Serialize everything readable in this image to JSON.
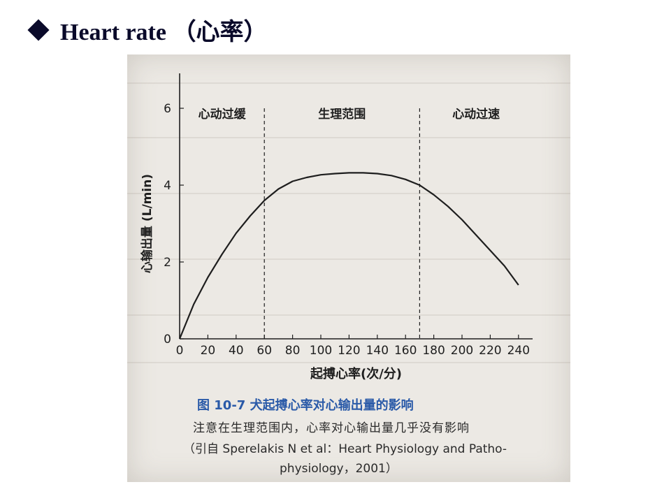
{
  "slide": {
    "title": "Heart rate （心率）"
  },
  "figure": {
    "caption_title": "图 10-7  犬起搏心率对心输出量的影响",
    "caption_note": "注意在生理范围内，心率对心输出量几乎没有影响",
    "caption_source_line1": "（引自 Sperelakis N et al：Heart Physiology and Patho-",
    "caption_source_line2": "physiology，2001）"
  },
  "chart_data": {
    "type": "line",
    "xlabel": "起搏心率(次/分)",
    "ylabel": "心输出量 (L/min)",
    "xlim": [
      0,
      250
    ],
    "ylim": [
      0,
      6
    ],
    "xticks": [
      0,
      20,
      40,
      60,
      80,
      100,
      120,
      140,
      160,
      180,
      200,
      220,
      240
    ],
    "yticks": [
      0,
      2,
      4,
      6
    ],
    "region_dividers_x": [
      60,
      170
    ],
    "region_labels": [
      "心动过缓",
      "生理范围",
      "心动过速"
    ],
    "grid": false,
    "series": [
      {
        "x": [
          0,
          10,
          20,
          30,
          40,
          50,
          60,
          70,
          80,
          90,
          100,
          110,
          120,
          130,
          140,
          150,
          160,
          170,
          180,
          190,
          200,
          210,
          220,
          230,
          240
        ],
        "values": [
          0.0,
          0.9,
          1.6,
          2.2,
          2.75,
          3.2,
          3.6,
          3.9,
          4.1,
          4.2,
          4.27,
          4.3,
          4.32,
          4.32,
          4.3,
          4.25,
          4.15,
          4.0,
          3.75,
          3.45,
          3.1,
          2.7,
          2.3,
          1.9,
          1.4
        ]
      }
    ]
  }
}
